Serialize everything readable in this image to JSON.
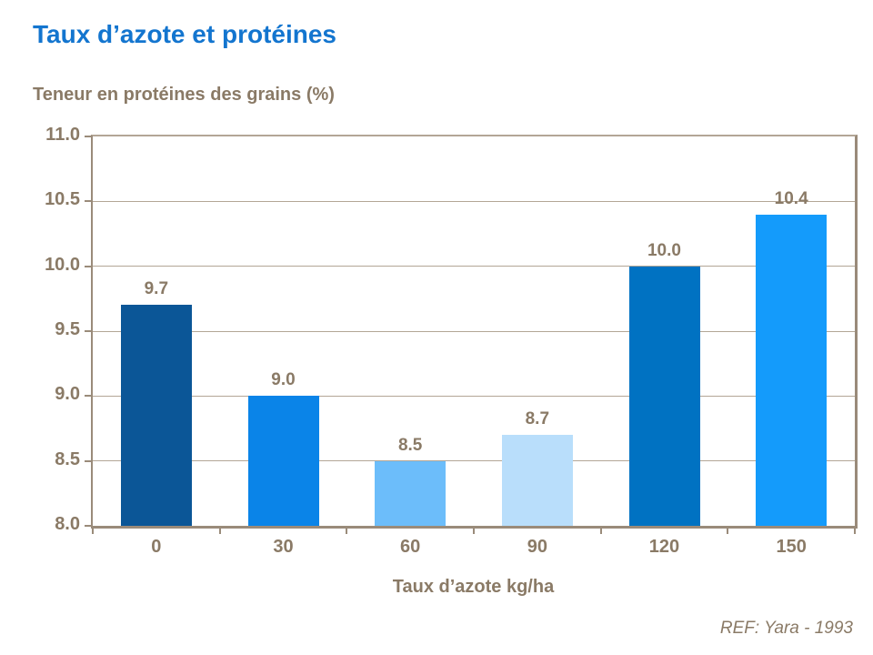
{
  "page": {
    "title": "Taux d’azote et protéines",
    "subtitle": "Teneur en protéines des grains (%)",
    "footer": "REF: Yara - 1993"
  },
  "colors": {
    "title_text": "#1375cf",
    "axis_text": "#8a7a66",
    "axis_line": "#9a8b7a",
    "gridline": "#b3a696",
    "bars": [
      "#0b5697",
      "#0a84e8",
      "#6cbdfa",
      "#b9defb",
      "#0072c2",
      "#149bfb"
    ]
  },
  "chart_data": {
    "type": "bar",
    "title": "Taux d’azote et protéines",
    "subtitle": "Teneur en protéines des grains (%)",
    "categories": [
      "0",
      "30",
      "60",
      "90",
      "120",
      "150"
    ],
    "values": [
      9.7,
      9.0,
      8.5,
      8.7,
      10.0,
      10.4
    ],
    "value_labels": [
      "9.7",
      "9.0",
      "8.5",
      "8.7",
      "10.0",
      "10.4"
    ],
    "xlabel": "Taux d’azote kg/ha",
    "ylabel": "Teneur en protéines des grains (%)",
    "ylim": [
      8.0,
      11.0
    ],
    "ytick_step": 0.5,
    "yticks": [
      "8.0",
      "8.5",
      "9.0",
      "9.5",
      "10.0",
      "10.5",
      "11.0"
    ],
    "grid": true,
    "legend": false,
    "annotation": "REF: Yara - 1993"
  }
}
